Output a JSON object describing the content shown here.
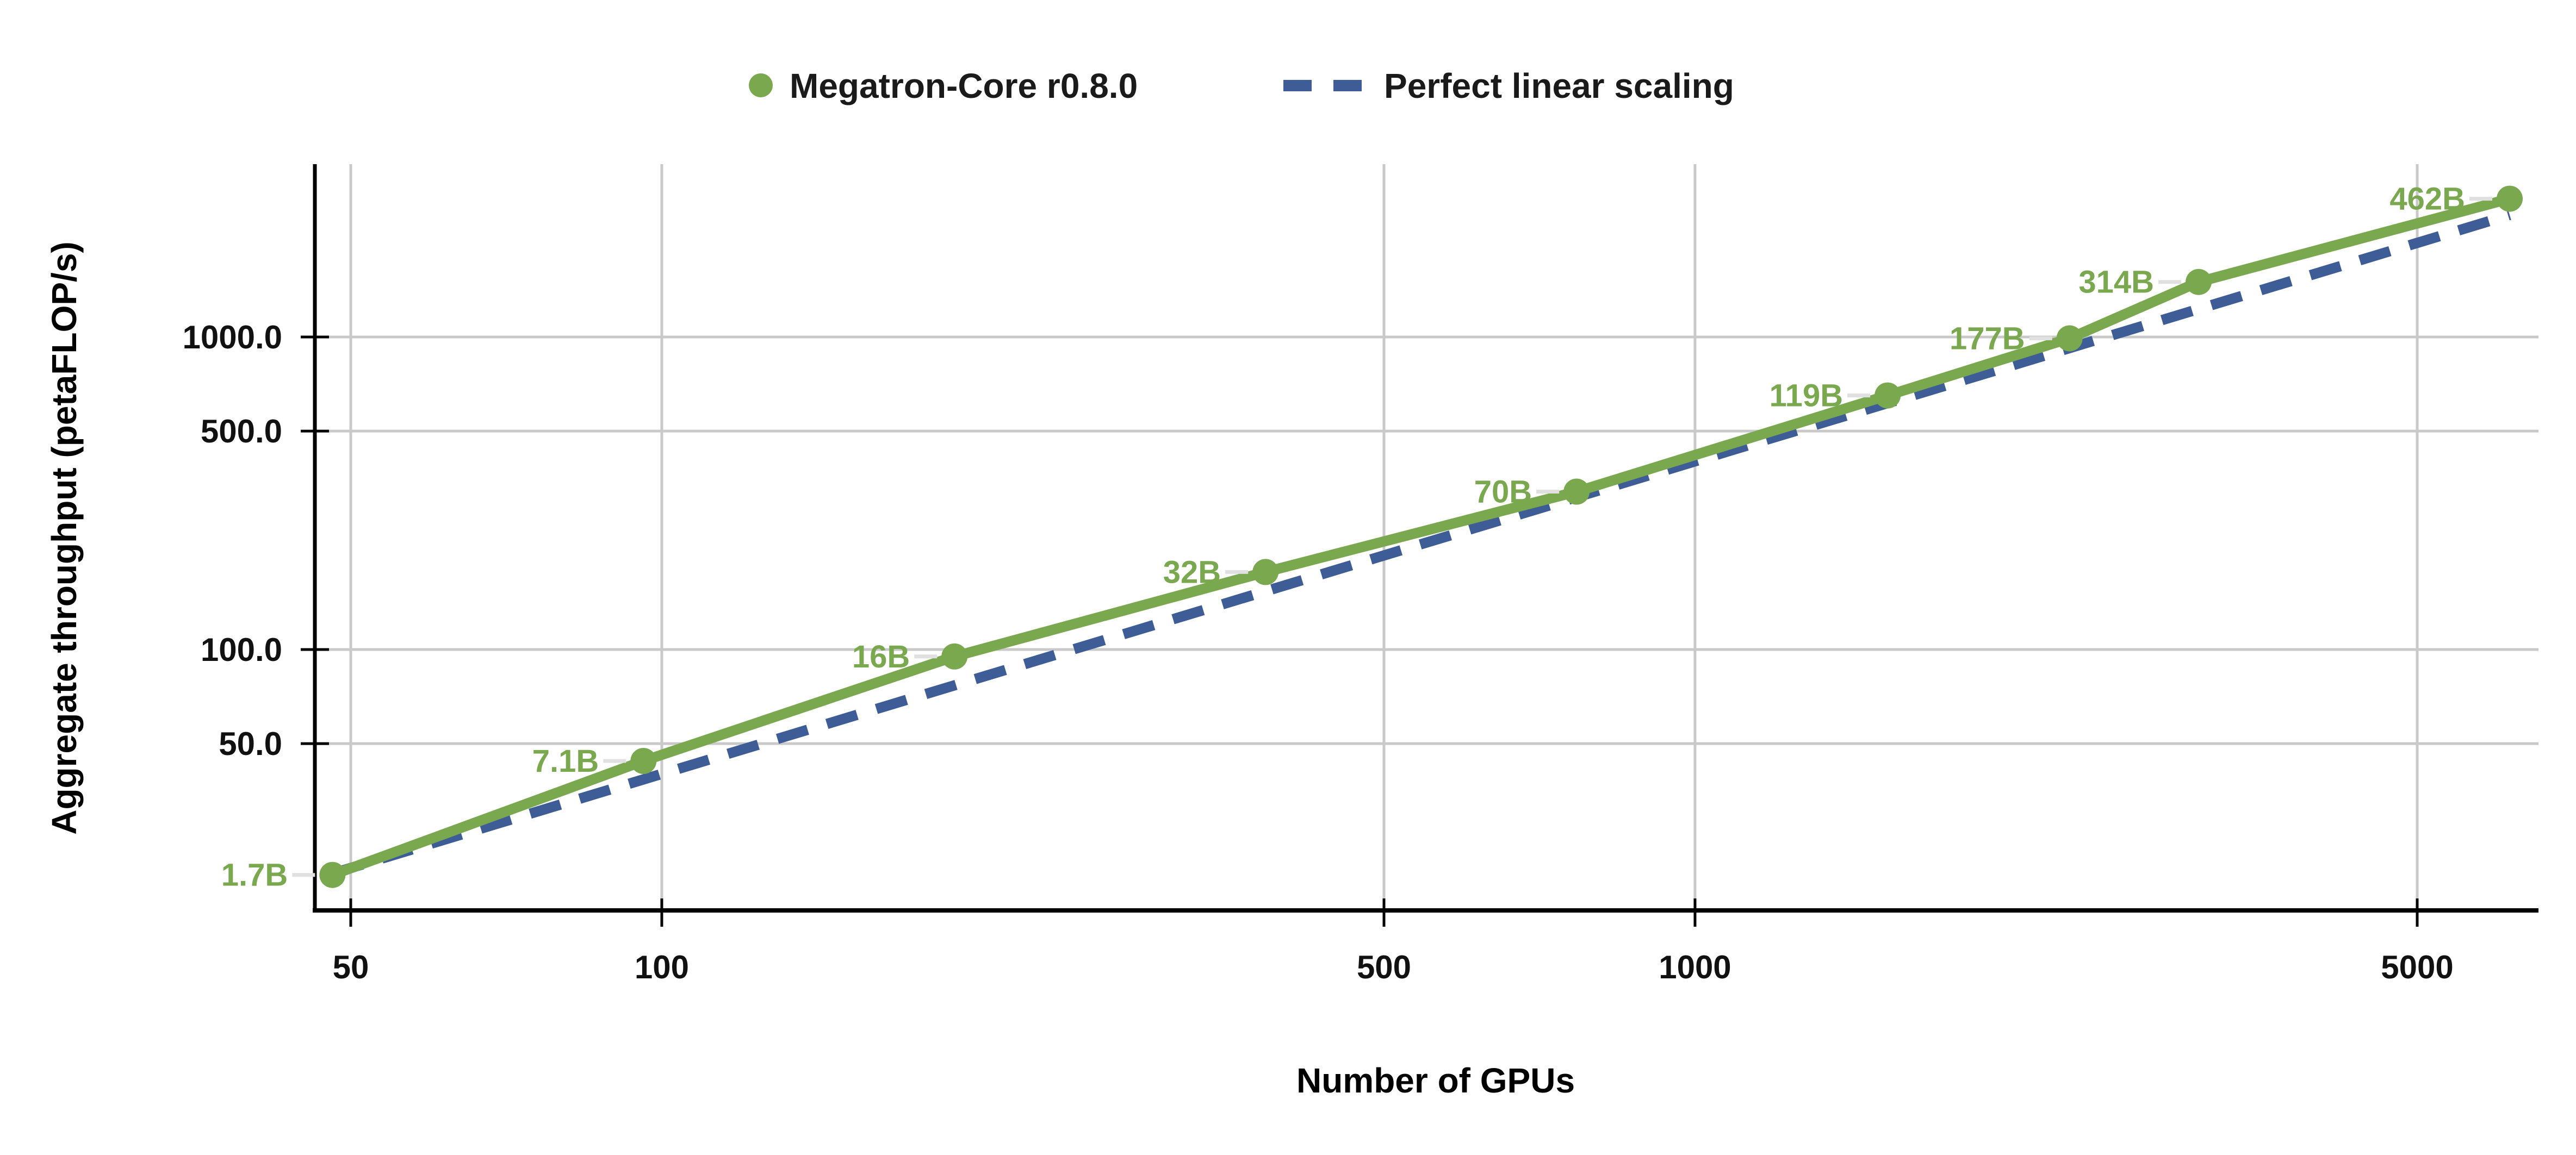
{
  "chart_data": {
    "type": "line",
    "title": "",
    "xlabel": "Number of GPUs",
    "ylabel": "Aggregate throughput (petaFLOP/s)",
    "x_scale": "log",
    "y_scale": "log",
    "xlim": [
      45,
      6900
    ],
    "ylim": [
      14.5,
      3600
    ],
    "grid": true,
    "legend_position": "top-center",
    "x_ticks": {
      "values": [
        50,
        100,
        500,
        1000,
        5000
      ],
      "labels": [
        "50",
        "100",
        "500",
        "1000",
        "5000"
      ]
    },
    "y_ticks": {
      "values": [
        50,
        100,
        500,
        1000
      ],
      "labels": [
        "50.0",
        "100.0",
        "500.0",
        "1000.0"
      ]
    },
    "x": [
      48,
      96,
      192,
      384,
      768,
      1536,
      2304,
      3072,
      6144
    ],
    "series": [
      {
        "name": "Megatron-Core r0.8.0",
        "type": "line+markers",
        "marker": "circle",
        "color": "#7aa84f",
        "values": [
          19,
          44,
          95,
          177,
          320,
          650,
          990,
          1500,
          2770
        ],
        "point_labels": [
          "1.7B",
          "7.1B",
          "16B",
          "32B",
          "70B",
          "119B",
          "177B",
          "314B",
          "462B"
        ]
      },
      {
        "name": "Perfect linear scaling",
        "type": "line",
        "style": "dashed",
        "color": "#3e5c95",
        "values": [
          19.2,
          38.4,
          76.8,
          153.6,
          307.2,
          614.4,
          921.6,
          1228.8,
          2457.6
        ]
      }
    ],
    "colors": {
      "megatron_green": "#7aa84f",
      "linear_blue": "#3e5c95",
      "grid": "#c9c9c9",
      "axis": "#000000",
      "tick_text": "#111111",
      "leader_line": "#e0e0e0",
      "background": "#ffffff"
    }
  }
}
